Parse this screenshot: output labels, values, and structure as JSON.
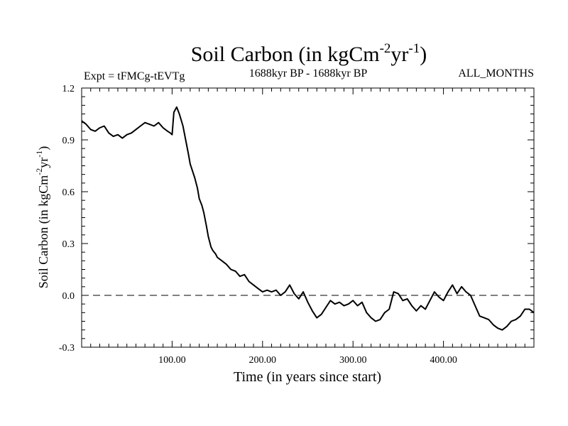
{
  "chart_data": {
    "type": "line",
    "title": {
      "main": "Soil Carbon (in kgCm",
      "sup1": "-2",
      "mid": "yr",
      "sup2": "-1",
      "end": ")"
    },
    "subtitle_left": "Expt = tFMCg-tEVTg",
    "subtitle_center": "1688kyr BP - 1688kyr BP",
    "subtitle_right": "ALL_MONTHS",
    "xlabel": "Time (in years since start)",
    "ylabel": {
      "main": "Soil Carbon (in kgCm",
      "sup1": "-2",
      "mid": "yr",
      "sup2": "-1",
      "end": ")"
    },
    "xlim": [
      0,
      500
    ],
    "ylim": [
      -0.3,
      1.2
    ],
    "xticks": [
      100,
      200,
      300,
      400
    ],
    "xtick_labels": [
      "100.00",
      "200.00",
      "300.00",
      "400.00"
    ],
    "yticks": [
      -0.3,
      0.0,
      0.3,
      0.6,
      0.9,
      1.2
    ],
    "ytick_labels": [
      "-0.3",
      "0.0",
      "0.3",
      "0.6",
      "0.9",
      "1.2"
    ],
    "reference_line": 0.0,
    "series": [
      {
        "name": "Soil Carbon",
        "x": [
          0,
          5,
          10,
          15,
          20,
          25,
          30,
          35,
          40,
          45,
          50,
          55,
          60,
          65,
          70,
          75,
          80,
          85,
          90,
          95,
          98,
          100,
          102,
          105,
          108,
          112,
          115,
          118,
          120,
          125,
          128,
          130,
          133,
          135,
          138,
          140,
          143,
          145,
          148,
          150,
          155,
          160,
          165,
          170,
          175,
          180,
          185,
          190,
          195,
          200,
          205,
          210,
          215,
          220,
          225,
          230,
          235,
          240,
          245,
          250,
          255,
          260,
          265,
          270,
          275,
          280,
          285,
          290,
          295,
          300,
          305,
          310,
          315,
          320,
          325,
          330,
          335,
          340,
          345,
          350,
          355,
          360,
          365,
          370,
          375,
          380,
          385,
          390,
          395,
          400,
          405,
          410,
          415,
          420,
          425,
          430,
          435,
          440,
          445,
          450,
          455,
          460,
          465,
          470,
          475,
          480,
          485,
          490,
          495,
          500
        ],
        "y": [
          1.01,
          0.99,
          0.96,
          0.95,
          0.97,
          0.98,
          0.94,
          0.92,
          0.93,
          0.91,
          0.93,
          0.94,
          0.96,
          0.98,
          1.0,
          0.99,
          0.98,
          1.0,
          0.97,
          0.95,
          0.94,
          0.93,
          1.06,
          1.09,
          1.05,
          0.98,
          0.9,
          0.82,
          0.76,
          0.68,
          0.62,
          0.56,
          0.52,
          0.48,
          0.4,
          0.34,
          0.28,
          0.26,
          0.24,
          0.22,
          0.2,
          0.18,
          0.15,
          0.14,
          0.11,
          0.12,
          0.08,
          0.06,
          0.04,
          0.02,
          0.03,
          0.02,
          0.03,
          0.0,
          0.02,
          0.06,
          0.01,
          -0.02,
          0.02,
          -0.04,
          -0.09,
          -0.13,
          -0.11,
          -0.07,
          -0.03,
          -0.05,
          -0.04,
          -0.06,
          -0.05,
          -0.03,
          -0.06,
          -0.04,
          -0.1,
          -0.13,
          -0.15,
          -0.14,
          -0.1,
          -0.08,
          0.02,
          0.01,
          -0.03,
          -0.02,
          -0.06,
          -0.09,
          -0.06,
          -0.08,
          -0.03,
          0.02,
          -0.01,
          -0.03,
          0.02,
          0.06,
          0.01,
          0.05,
          0.02,
          0.0,
          -0.06,
          -0.12,
          -0.13,
          -0.14,
          -0.17,
          -0.19,
          -0.2,
          -0.18,
          -0.15,
          -0.14,
          -0.12,
          -0.08,
          -0.08,
          -0.1
        ]
      }
    ]
  },
  "colors": {
    "line": "#000000",
    "axes": "#000000",
    "background": "#ffffff"
  }
}
